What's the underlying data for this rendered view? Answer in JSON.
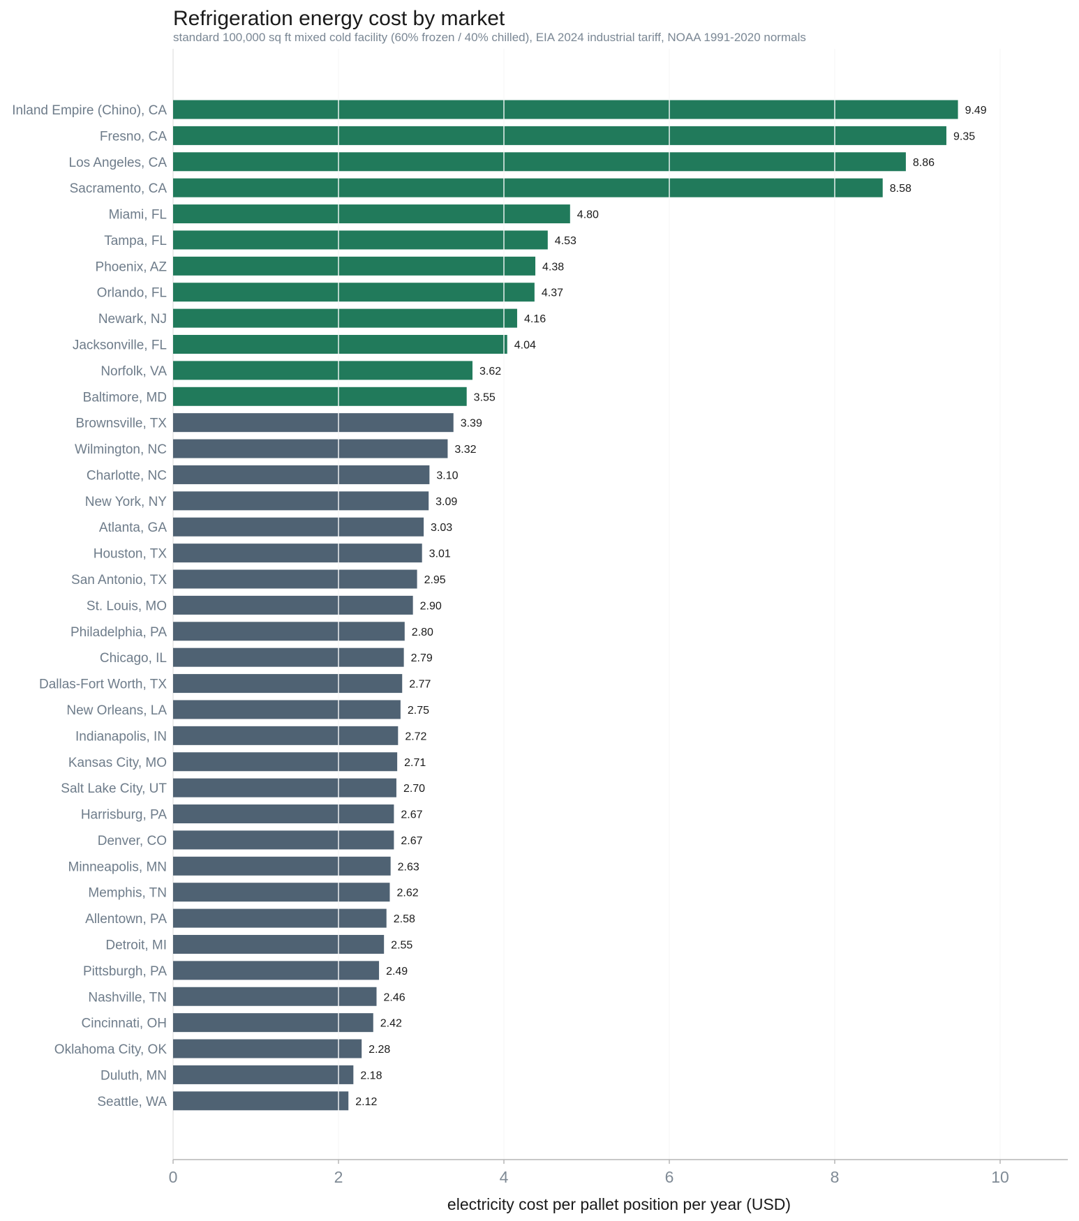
{
  "chart_data": {
    "type": "bar",
    "orientation": "horizontal",
    "title": "Refrigeration energy cost by market",
    "subtitle": "standard 100,000 sq ft mixed cold facility (60% frozen / 40% chilled), EIA 2024 industrial tariff, NOAA 1991-2020 normals",
    "xlabel": "electricity cost per pallet position per year (USD)",
    "ylabel": "",
    "xlim": [
      0,
      10.8
    ],
    "xticks": [
      0,
      2,
      4,
      6,
      8,
      10
    ],
    "grid": "vertical",
    "legend": "none",
    "colors": {
      "highlight": "#217a5b",
      "base": "#4f6273"
    },
    "categories": [
      "Inland Empire (Chino), CA",
      "Fresno, CA",
      "Los Angeles, CA",
      "Sacramento, CA",
      "Miami, FL",
      "Tampa, FL",
      "Phoenix, AZ",
      "Orlando, FL",
      "Newark, NJ",
      "Jacksonville, FL",
      "Norfolk, VA",
      "Baltimore, MD",
      "Brownsville, TX",
      "Wilmington, NC",
      "Charlotte, NC",
      "New York, NY",
      "Atlanta, GA",
      "Houston, TX",
      "San Antonio, TX",
      "St. Louis, MO",
      "Philadelphia, PA",
      "Chicago, IL",
      "Dallas-Fort Worth, TX",
      "New Orleans, LA",
      "Indianapolis, IN",
      "Kansas City, MO",
      "Salt Lake City, UT",
      "Harrisburg, PA",
      "Denver, CO",
      "Minneapolis, MN",
      "Memphis, TN",
      "Allentown, PA",
      "Detroit, MI",
      "Pittsburgh, PA",
      "Nashville, TN",
      "Cincinnati, OH",
      "Oklahoma City, OK",
      "Duluth, MN",
      "Seattle, WA"
    ],
    "values": [
      9.49,
      9.35,
      8.86,
      8.58,
      4.8,
      4.53,
      4.38,
      4.37,
      4.16,
      4.04,
      3.62,
      3.55,
      3.39,
      3.32,
      3.1,
      3.09,
      3.03,
      3.01,
      2.95,
      2.9,
      2.8,
      2.79,
      2.77,
      2.75,
      2.72,
      2.71,
      2.7,
      2.67,
      2.67,
      2.63,
      2.62,
      2.58,
      2.55,
      2.49,
      2.46,
      2.42,
      2.28,
      2.18,
      2.12
    ],
    "value_labels": [
      "9.49",
      "9.35",
      "8.86",
      "8.58",
      "4.80",
      "4.53",
      "4.38",
      "4.37",
      "4.16",
      "4.04",
      "3.62",
      "3.55",
      "3.39",
      "3.32",
      "3.10",
      "3.09",
      "3.03",
      "3.01",
      "2.95",
      "2.90",
      "2.80",
      "2.79",
      "2.77",
      "2.75",
      "2.72",
      "2.71",
      "2.70",
      "2.67",
      "2.67",
      "2.63",
      "2.62",
      "2.58",
      "2.55",
      "2.49",
      "2.46",
      "2.42",
      "2.28",
      "2.18",
      "2.12"
    ],
    "highlight_top_n": 12
  }
}
